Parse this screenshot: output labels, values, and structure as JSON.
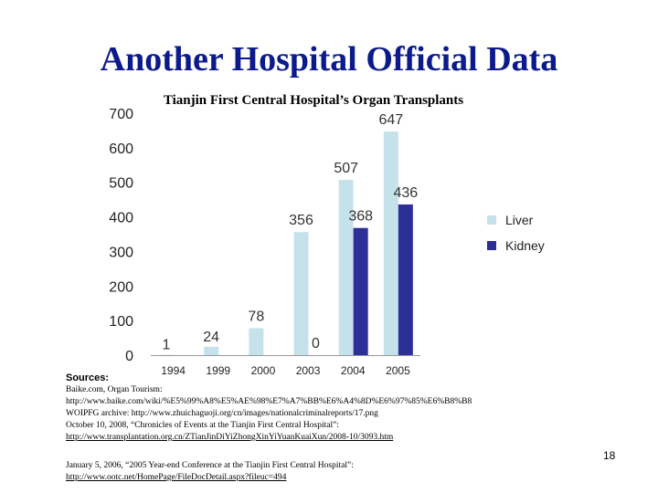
{
  "slide": {
    "title": "Another Hospital Official Data",
    "page_number": "18"
  },
  "chart_data": {
    "type": "bar",
    "title": "Tianjin First Central Hospital’s Organ Transplants",
    "categories": [
      "1994",
      "1999",
      "2000",
      "2003",
      "2004",
      "2005"
    ],
    "series": [
      {
        "name": "Liver",
        "color": "#c5e2ea",
        "values": [
          1,
          24,
          78,
          356,
          507,
          647
        ],
        "labels": [
          "1",
          "24",
          "78",
          "356",
          "507",
          "647"
        ]
      },
      {
        "name": "Kidney",
        "color": "#2d2f99",
        "values": [
          null,
          null,
          null,
          0,
          368,
          436
        ],
        "labels": [
          "",
          "",
          "",
          "0",
          "368",
          "436"
        ]
      }
    ],
    "ylim": [
      0,
      700
    ],
    "yticks": [
      "0",
      "100",
      "200",
      "300",
      "400",
      "500",
      "600",
      "700"
    ],
    "xlabel": "",
    "ylabel": "",
    "grid": false,
    "legend": "right"
  },
  "sources": {
    "label": "Sources:",
    "lines": [
      "Baike.com, Organ Tourism:",
      "http://www.baike.com/wiki/%E5%99%A8%E5%AE%98%E7%A7%BB%E6%A4%8D%E6%97%85%E6%B8%B8",
      "WOIPFG archive: http://www.zhuichaguoji.org/cn/images/nationalcriminalreports/17.png",
      "October 10, 2008, “Chronicles of Events at the Tianjin First Central Hospital”:"
    ],
    "link1": "http://www.transplantation.org.cn/ZTianJinDiYiZhongXinYiYuanKuaiXun/2008-10/3093.htm",
    "line5": "January 5, 2006, “2005 Year-end Conference at the Tianjin First Central Hospital”:",
    "link2": "http://www.ootc.net/HomePage/FileDocDetail.aspx?fileuc=494"
  }
}
